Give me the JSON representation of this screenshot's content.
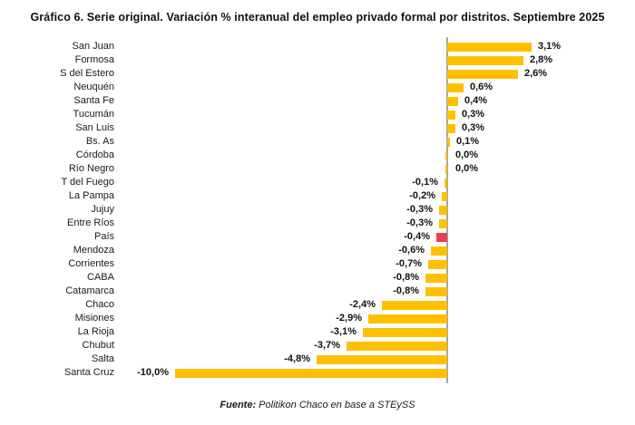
{
  "title": "Gráfico 6. Serie original. Variación % interanual del empleo privado formal por distritos. Septiembre 2025",
  "footer": {
    "prefix": "Fuente:",
    "text": " Politikon Chaco en base a STEySS"
  },
  "chart_data": {
    "type": "bar",
    "orientation": "horizontal",
    "title": "Gráfico 6. Serie original. Variación % interanual del empleo privado formal por distritos. Septiembre 2025",
    "xlabel": "",
    "ylabel": "",
    "xlim": [
      -10.5,
      3.5
    ],
    "grid": false,
    "legend": "none",
    "categories": [
      "San Juan",
      "Formosa",
      "S del Estero",
      "Neuquén",
      "Santa Fe",
      "Tucumán",
      "San Luis",
      "Bs. As",
      "Córdoba",
      "Río Negro",
      "T del Fuego",
      "La Pampa",
      "Jujuy",
      "Entre Ríos",
      "País",
      "Mendoza",
      "Corrientes",
      "CABA",
      "Catamarca",
      "Chaco",
      "Misiones",
      "La Rioja",
      "Chubut",
      "Salta",
      "Santa Cruz"
    ],
    "values": [
      3.1,
      2.8,
      2.6,
      0.6,
      0.4,
      0.3,
      0.3,
      0.1,
      0.0,
      0.0,
      -0.1,
      -0.2,
      -0.3,
      -0.3,
      -0.4,
      -0.6,
      -0.7,
      -0.8,
      -0.8,
      -2.4,
      -2.9,
      -3.1,
      -3.7,
      -4.8,
      -10.0
    ],
    "labels_display": [
      "3,1%",
      "2,8%",
      "2,6%",
      "0,6%",
      "0,4%",
      "0,3%",
      "0,3%",
      "0,1%",
      "0,0%",
      "0,0%",
      "-0,1%",
      "-0,2%",
      "-0,3%",
      "-0,3%",
      "-0,4%",
      "-0,6%",
      "-0,7%",
      "-0,8%",
      "-0,8%",
      "-2,4%",
      "-2,9%",
      "-3,1%",
      "-3,7%",
      "-4,8%",
      "-10,0%"
    ],
    "highlight_category": "País",
    "highlight_index": 14,
    "bar_color": "#FFC000",
    "highlight_color": "#E8414E",
    "axis_color": "#A6A6A6",
    "value_label_color": "#111111"
  }
}
